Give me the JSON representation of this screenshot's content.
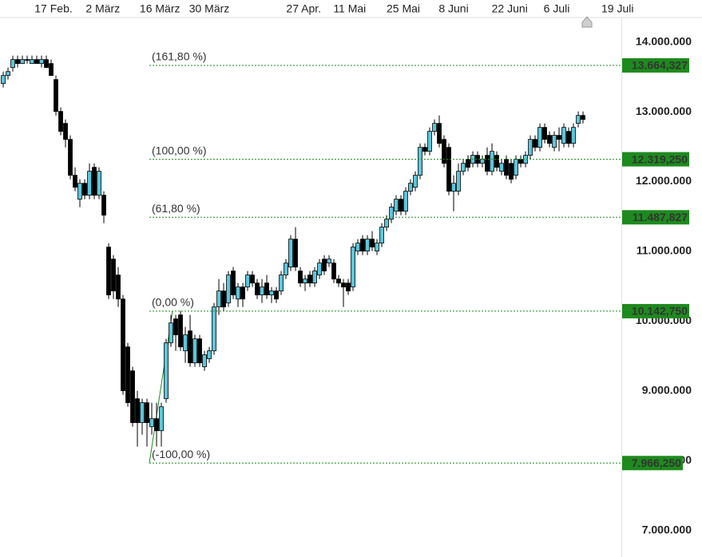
{
  "chart_data": {
    "type": "candlestick",
    "xlim": [
      -0.67,
      129.33
    ],
    "xticks": [
      {
        "value": 10.5,
        "label": "17 Feb."
      },
      {
        "value": 20.8,
        "label": "2 März"
      },
      {
        "value": 32.7,
        "label": "16 März"
      },
      {
        "value": 43,
        "label": "30 März"
      },
      {
        "value": 62.7,
        "label": "27 Apr."
      },
      {
        "value": 72.3,
        "label": "11 Mai"
      },
      {
        "value": 83.5,
        "label": "25 Mai"
      },
      {
        "value": 94,
        "label": "8 Juni"
      },
      {
        "value": 105.7,
        "label": "22 Juni"
      },
      {
        "value": 115.5,
        "label": "6 Juli"
      },
      {
        "value": 128.2,
        "label": "19 Juli"
      }
    ],
    "ylim": [
      6620000,
      14350000
    ],
    "yticks": [
      {
        "value": 7000000,
        "label": "7.000.000"
      },
      {
        "value": 8000000,
        "label": "8.000.000"
      },
      {
        "value": 9000000,
        "label": "9.000.000"
      },
      {
        "value": 10000000,
        "label": "10.000.000"
      },
      {
        "value": 11000000,
        "label": "11.000.000"
      },
      {
        "value": 12000000,
        "label": "12.000.000"
      },
      {
        "value": 13000000,
        "label": "13.000.000"
      },
      {
        "value": 14000000,
        "label": "14.000.000"
      }
    ],
    "up_color": "#5cc6dc",
    "down_color": "#000000",
    "level_color": "#1e8a1e",
    "open": [
      13405000,
      13519000,
      13634000,
      13748000,
      13691000,
      13748000,
      13691000,
      13748000,
      13691000,
      13748000,
      13691000,
      13462000,
      13005000,
      12833000,
      12604000,
      12090000,
      11747000,
      11975000,
      11804000,
      12204000,
      11804000,
      11804000,
      11061000,
      10889000,
      10661000,
      10317000,
      9631000,
      9288000,
      8888000,
      8545000,
      8831000,
      8487000,
      8602000,
      8430000,
      8888000,
      9688000,
      10032000,
      10089000,
      9574000,
      9860000,
      9402000,
      9746000,
      9345000,
      9460000,
      9574000,
      10203000,
      10432000,
      10260000,
      10718000,
      10317000,
      10489000,
      10489000,
      10661000,
      10546000,
      10375000,
      10546000,
      10375000,
      10432000,
      10432000,
      10661000,
      10775000,
      11175000,
      10718000,
      10546000,
      10661000,
      10546000,
      10661000,
      10889000,
      10832000,
      10832000,
      10603000,
      10546000,
      10546000,
      10489000,
      11004000,
      11175000,
      11004000,
      11175000,
      11004000,
      11118000,
      11347000,
      11461000,
      11575000,
      11747000,
      11575000,
      11861000,
      11918000,
      12090000,
      12490000,
      12433000,
      12719000,
      12833000,
      12604000,
      12490000,
      11861000,
      11861000,
      12147000,
      12319000,
      12261000,
      12376000,
      12261000,
      12376000,
      12147000,
      12376000,
      12147000,
      12319000,
      12261000,
      12090000,
      12319000,
      12261000,
      12376000,
      12604000,
      12490000,
      12776000,
      12662000,
      12490000,
      12662000,
      12547000,
      12719000,
      12547000,
      12833000,
      12947000
    ],
    "high": [
      13576000,
      13634000,
      13805000,
      13805000,
      13805000,
      13805000,
      13805000,
      13805000,
      13805000,
      13805000,
      13748000,
      13519000,
      13062000,
      12890000,
      12662000,
      12204000,
      12033000,
      12033000,
      12261000,
      12261000,
      12204000,
      11861000,
      11118000,
      10946000,
      10775000,
      10375000,
      9688000,
      9345000,
      9002000,
      8888000,
      8888000,
      8831000,
      8831000,
      8831000,
      9746000,
      10089000,
      10089000,
      10146000,
      9917000,
      10089000,
      9803000,
      9803000,
      9574000,
      9631000,
      10260000,
      10603000,
      10546000,
      10718000,
      10775000,
      10546000,
      10546000,
      10718000,
      10718000,
      10603000,
      10603000,
      10661000,
      10489000,
      10489000,
      10718000,
      10889000,
      11232000,
      11347000,
      10775000,
      10661000,
      10718000,
      10775000,
      10889000,
      10946000,
      10946000,
      10889000,
      10661000,
      10603000,
      10603000,
      11118000,
      11175000,
      11232000,
      11232000,
      11290000,
      11175000,
      11404000,
      11518000,
      11690000,
      11804000,
      11804000,
      11918000,
      12033000,
      12147000,
      12547000,
      12547000,
      12776000,
      12890000,
      12947000,
      12662000,
      12547000,
      12090000,
      12261000,
      12319000,
      12376000,
      12433000,
      12433000,
      12376000,
      12490000,
      12547000,
      12433000,
      12319000,
      12376000,
      12319000,
      12376000,
      12376000,
      12433000,
      12662000,
      12662000,
      12833000,
      12833000,
      12719000,
      12719000,
      12776000,
      12833000,
      12776000,
      12833000,
      13005000,
      13005000
    ],
    "low": [
      13348000,
      13462000,
      13576000,
      13634000,
      13691000,
      13691000,
      13691000,
      13691000,
      13634000,
      13634000,
      13519000,
      12947000,
      12662000,
      12490000,
      12033000,
      11861000,
      11633000,
      11747000,
      11747000,
      11747000,
      11747000,
      11404000,
      10317000,
      10317000,
      10203000,
      8945000,
      8773000,
      8487000,
      8202000,
      8373000,
      8202000,
      8373000,
      8202000,
      8202000,
      8831000,
      9631000,
      9574000,
      9574000,
      9402000,
      9345000,
      9345000,
      9345000,
      9288000,
      9402000,
      9517000,
      10089000,
      10146000,
      10203000,
      10317000,
      10203000,
      10203000,
      10432000,
      10489000,
      10317000,
      10260000,
      10317000,
      10260000,
      10260000,
      10375000,
      10603000,
      10718000,
      10718000,
      10489000,
      10432000,
      10489000,
      10489000,
      10603000,
      10661000,
      10775000,
      10546000,
      10489000,
      10203000,
      10375000,
      10432000,
      10946000,
      10946000,
      10946000,
      11004000,
      10946000,
      11061000,
      11290000,
      11404000,
      11518000,
      11518000,
      11518000,
      11804000,
      11861000,
      12033000,
      12376000,
      12376000,
      12662000,
      12490000,
      12204000,
      11804000,
      11575000,
      11804000,
      12090000,
      12147000,
      12204000,
      12204000,
      12204000,
      12090000,
      12090000,
      12147000,
      12090000,
      12033000,
      11975000,
      12033000,
      12204000,
      12204000,
      12319000,
      12433000,
      12433000,
      12547000,
      12490000,
      12433000,
      12433000,
      12490000,
      12490000,
      12490000,
      12776000,
      12833000
    ],
    "close": [
      13519000,
      13576000,
      13748000,
      13691000,
      13748000,
      13748000,
      13748000,
      13691000,
      13748000,
      13634000,
      13519000,
      13005000,
      12719000,
      12604000,
      12090000,
      11918000,
      11975000,
      11804000,
      12147000,
      11804000,
      12147000,
      11518000,
      10375000,
      10432000,
      10317000,
      9002000,
      8831000,
      8545000,
      8545000,
      8831000,
      8545000,
      8602000,
      8430000,
      8773000,
      9688000,
      9974000,
      9803000,
      9631000,
      9803000,
      9402000,
      9746000,
      9402000,
      9517000,
      9574000,
      10203000,
      10432000,
      10203000,
      10661000,
      10375000,
      10489000,
      10317000,
      10661000,
      10546000,
      10375000,
      10489000,
      10375000,
      10432000,
      10317000,
      10661000,
      10832000,
      11175000,
      10775000,
      10546000,
      10603000,
      10546000,
      10718000,
      10832000,
      10718000,
      10889000,
      10603000,
      10546000,
      10489000,
      10432000,
      11061000,
      11118000,
      11004000,
      11175000,
      11061000,
      11118000,
      11347000,
      11461000,
      11633000,
      11747000,
      11575000,
      11861000,
      11975000,
      12090000,
      12490000,
      12433000,
      12719000,
      12833000,
      12547000,
      12261000,
      11861000,
      11975000,
      12147000,
      12261000,
      12204000,
      12376000,
      12261000,
      12319000,
      12147000,
      12433000,
      12204000,
      12261000,
      12090000,
      12033000,
      12319000,
      12261000,
      12376000,
      12604000,
      12490000,
      12776000,
      12604000,
      12547000,
      12662000,
      12604000,
      12776000,
      12547000,
      12776000,
      12947000,
      12890000
    ],
    "levels": [
      {
        "name": "(161,80 %)",
        "value": 13664327,
        "value_label": "13.664,327"
      },
      {
        "name": "(100,00 %)",
        "value": 12319250,
        "value_label": "12.319,250"
      },
      {
        "name": "(61,80 %)",
        "value": 11487827,
        "value_label": "11.487,827"
      },
      {
        "name": "(0,00 %)",
        "value": 10142750,
        "value_label": "10.142,750"
      },
      {
        "name": "(-100,00 %)",
        "value": 7966250,
        "value_label": "7.966,250"
      }
    ]
  }
}
